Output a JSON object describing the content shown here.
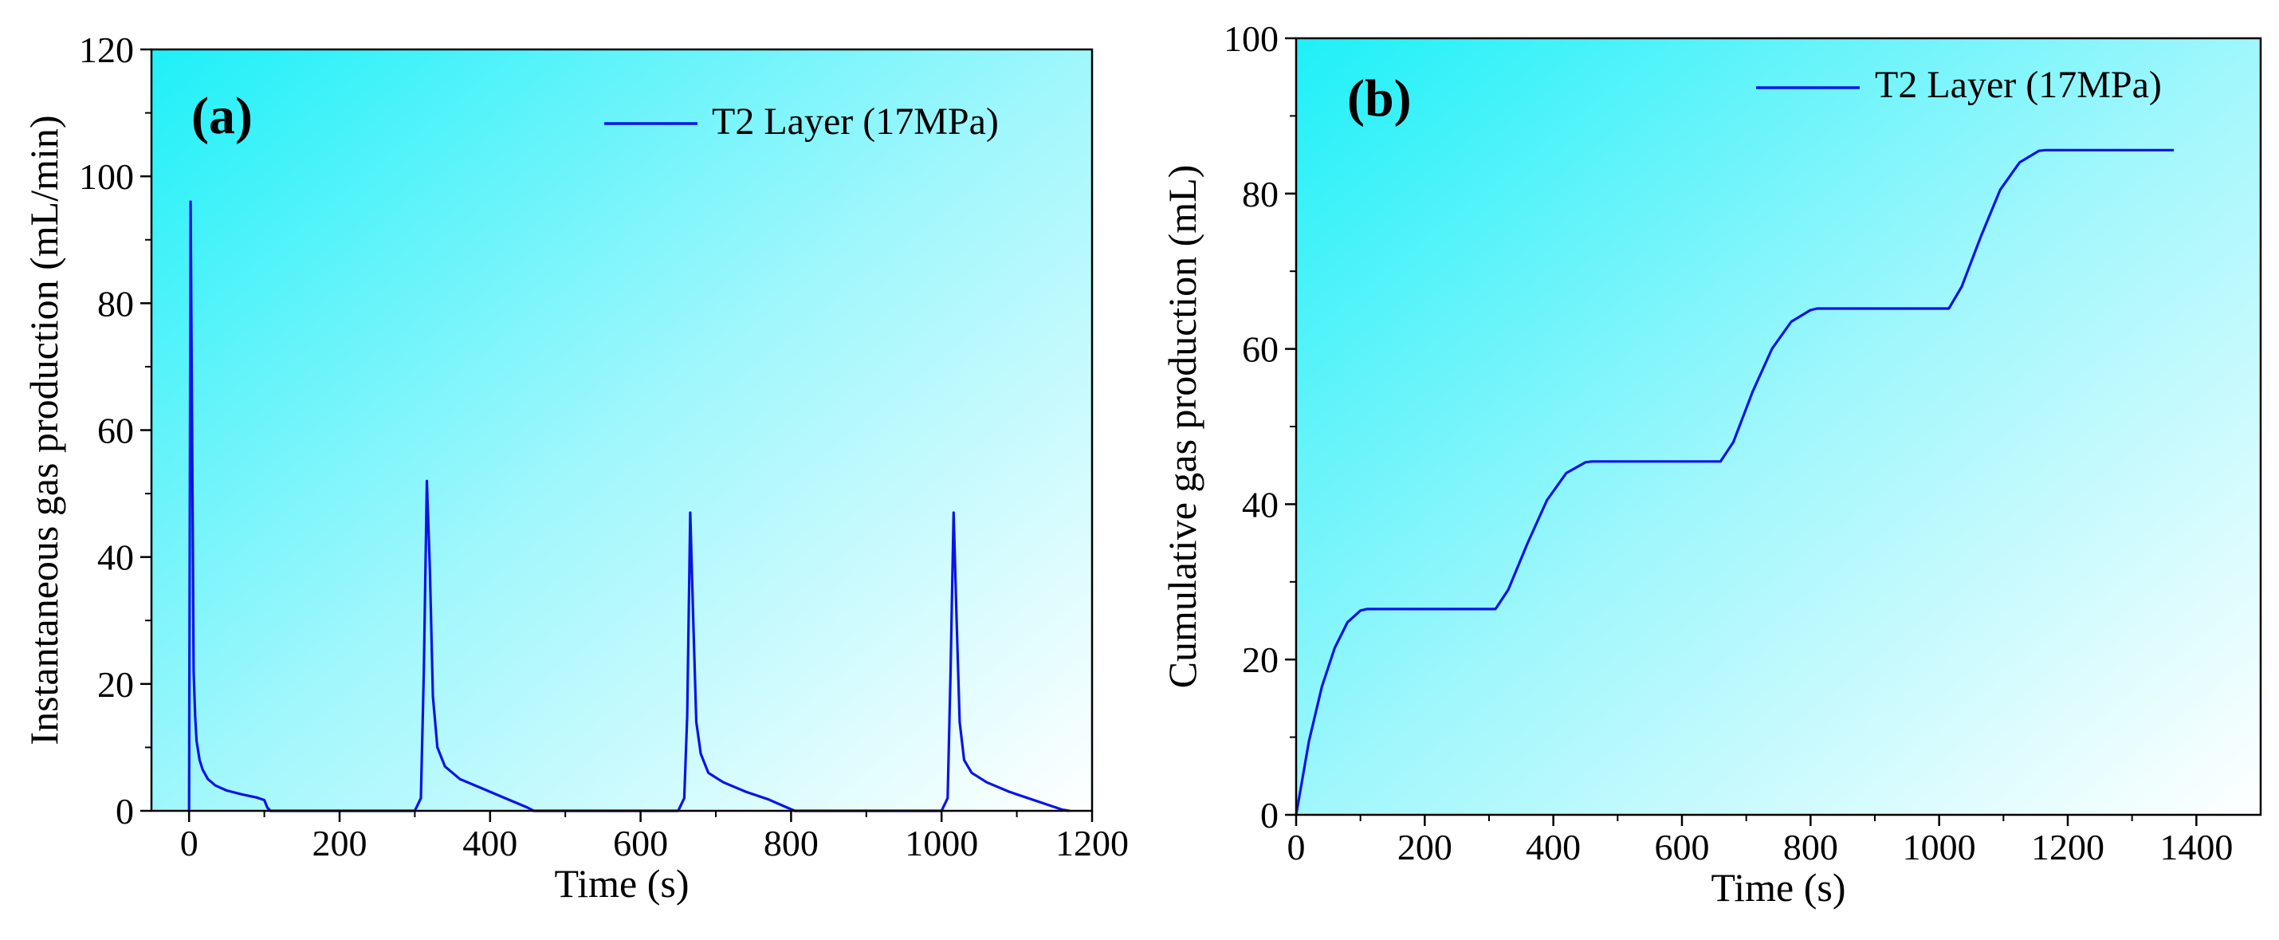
{
  "colors": {
    "series": "#0a14e6",
    "grad_start": "#1ff0f8",
    "grad_mid": "#9ff7fc",
    "grad_end": "#ffffff",
    "axis": "#000000"
  },
  "chart_data": [
    {
      "type": "line",
      "panel_label": "(a)",
      "title": "",
      "xlabel": "Time (s)",
      "ylabel": "Instantaneous gas production (mL/min)",
      "xlim": [
        -50,
        1200
      ],
      "ylim": [
        0,
        120
      ],
      "xticks": [
        0,
        200,
        400,
        600,
        800,
        1000,
        1200
      ],
      "yticks": [
        0,
        20,
        40,
        60,
        80,
        100,
        120
      ],
      "xtick_labels": [
        "0",
        "200",
        "400",
        "600",
        "800",
        "1000",
        "1200"
      ],
      "ytick_labels": [
        "0",
        "20",
        "40",
        "60",
        "80",
        "100",
        "120"
      ],
      "grid": false,
      "legend_position": "top-right",
      "series": [
        {
          "name": "T2 Layer (17MPa)",
          "x": [
            0,
            2,
            4,
            6,
            8,
            10,
            14,
            18,
            25,
            35,
            50,
            70,
            90,
            100,
            104,
            108,
            300,
            308,
            312,
            316,
            320,
            324,
            330,
            340,
            360,
            390,
            420,
            440,
            450,
            458,
            650,
            658,
            662,
            666,
            670,
            674,
            680,
            690,
            710,
            740,
            770,
            795,
            805,
            1000,
            1008,
            1012,
            1016,
            1020,
            1024,
            1030,
            1040,
            1060,
            1090,
            1120,
            1145,
            1160,
            1170
          ],
          "y": [
            0,
            96,
            60,
            22,
            15,
            11,
            8,
            6.5,
            5,
            4,
            3.2,
            2.6,
            2.1,
            1.7,
            0.5,
            0,
            0,
            2,
            22,
            52,
            38,
            18,
            10,
            7,
            5,
            3.5,
            2,
            1,
            0.5,
            0,
            0,
            2,
            15,
            47,
            30,
            14,
            9,
            6,
            4.5,
            3,
            1.8,
            0.5,
            0,
            0,
            2,
            22,
            47,
            30,
            14,
            8,
            6,
            4.5,
            3,
            1.8,
            0.8,
            0.2,
            0
          ]
        }
      ]
    },
    {
      "type": "line",
      "panel_label": "(b)",
      "title": "",
      "xlabel": "Time (s)",
      "ylabel": "Cumulative gas production (mL)",
      "xlim": [
        0,
        1500
      ],
      "ylim": [
        0,
        100
      ],
      "xticks": [
        0,
        200,
        400,
        600,
        800,
        1000,
        1200,
        1400
      ],
      "yticks": [
        0,
        20,
        40,
        60,
        80,
        100
      ],
      "xtick_labels": [
        "0",
        "200",
        "400",
        "600",
        "800",
        "1000",
        "1200",
        "1400"
      ],
      "ytick_labels": [
        "0",
        "20",
        "40",
        "60",
        "80",
        "100"
      ],
      "grid": false,
      "legend_position": "top-right",
      "series": [
        {
          "name": "T2 Layer (17MPa)",
          "x": [
            0,
            20,
            40,
            60,
            80,
            100,
            110,
            310,
            330,
            360,
            390,
            420,
            450,
            460,
            660,
            680,
            710,
            740,
            770,
            800,
            810,
            1015,
            1035,
            1065,
            1095,
            1125,
            1155,
            1165,
            1365
          ],
          "y": [
            0,
            9.5,
            16.5,
            21.5,
            24.8,
            26.3,
            26.5,
            26.5,
            29,
            35,
            40.5,
            44,
            45.4,
            45.5,
            45.5,
            48,
            54.5,
            60,
            63.5,
            65,
            65.2,
            65.2,
            68,
            74.5,
            80.5,
            84,
            85.5,
            85.6,
            85.6
          ]
        }
      ]
    }
  ]
}
